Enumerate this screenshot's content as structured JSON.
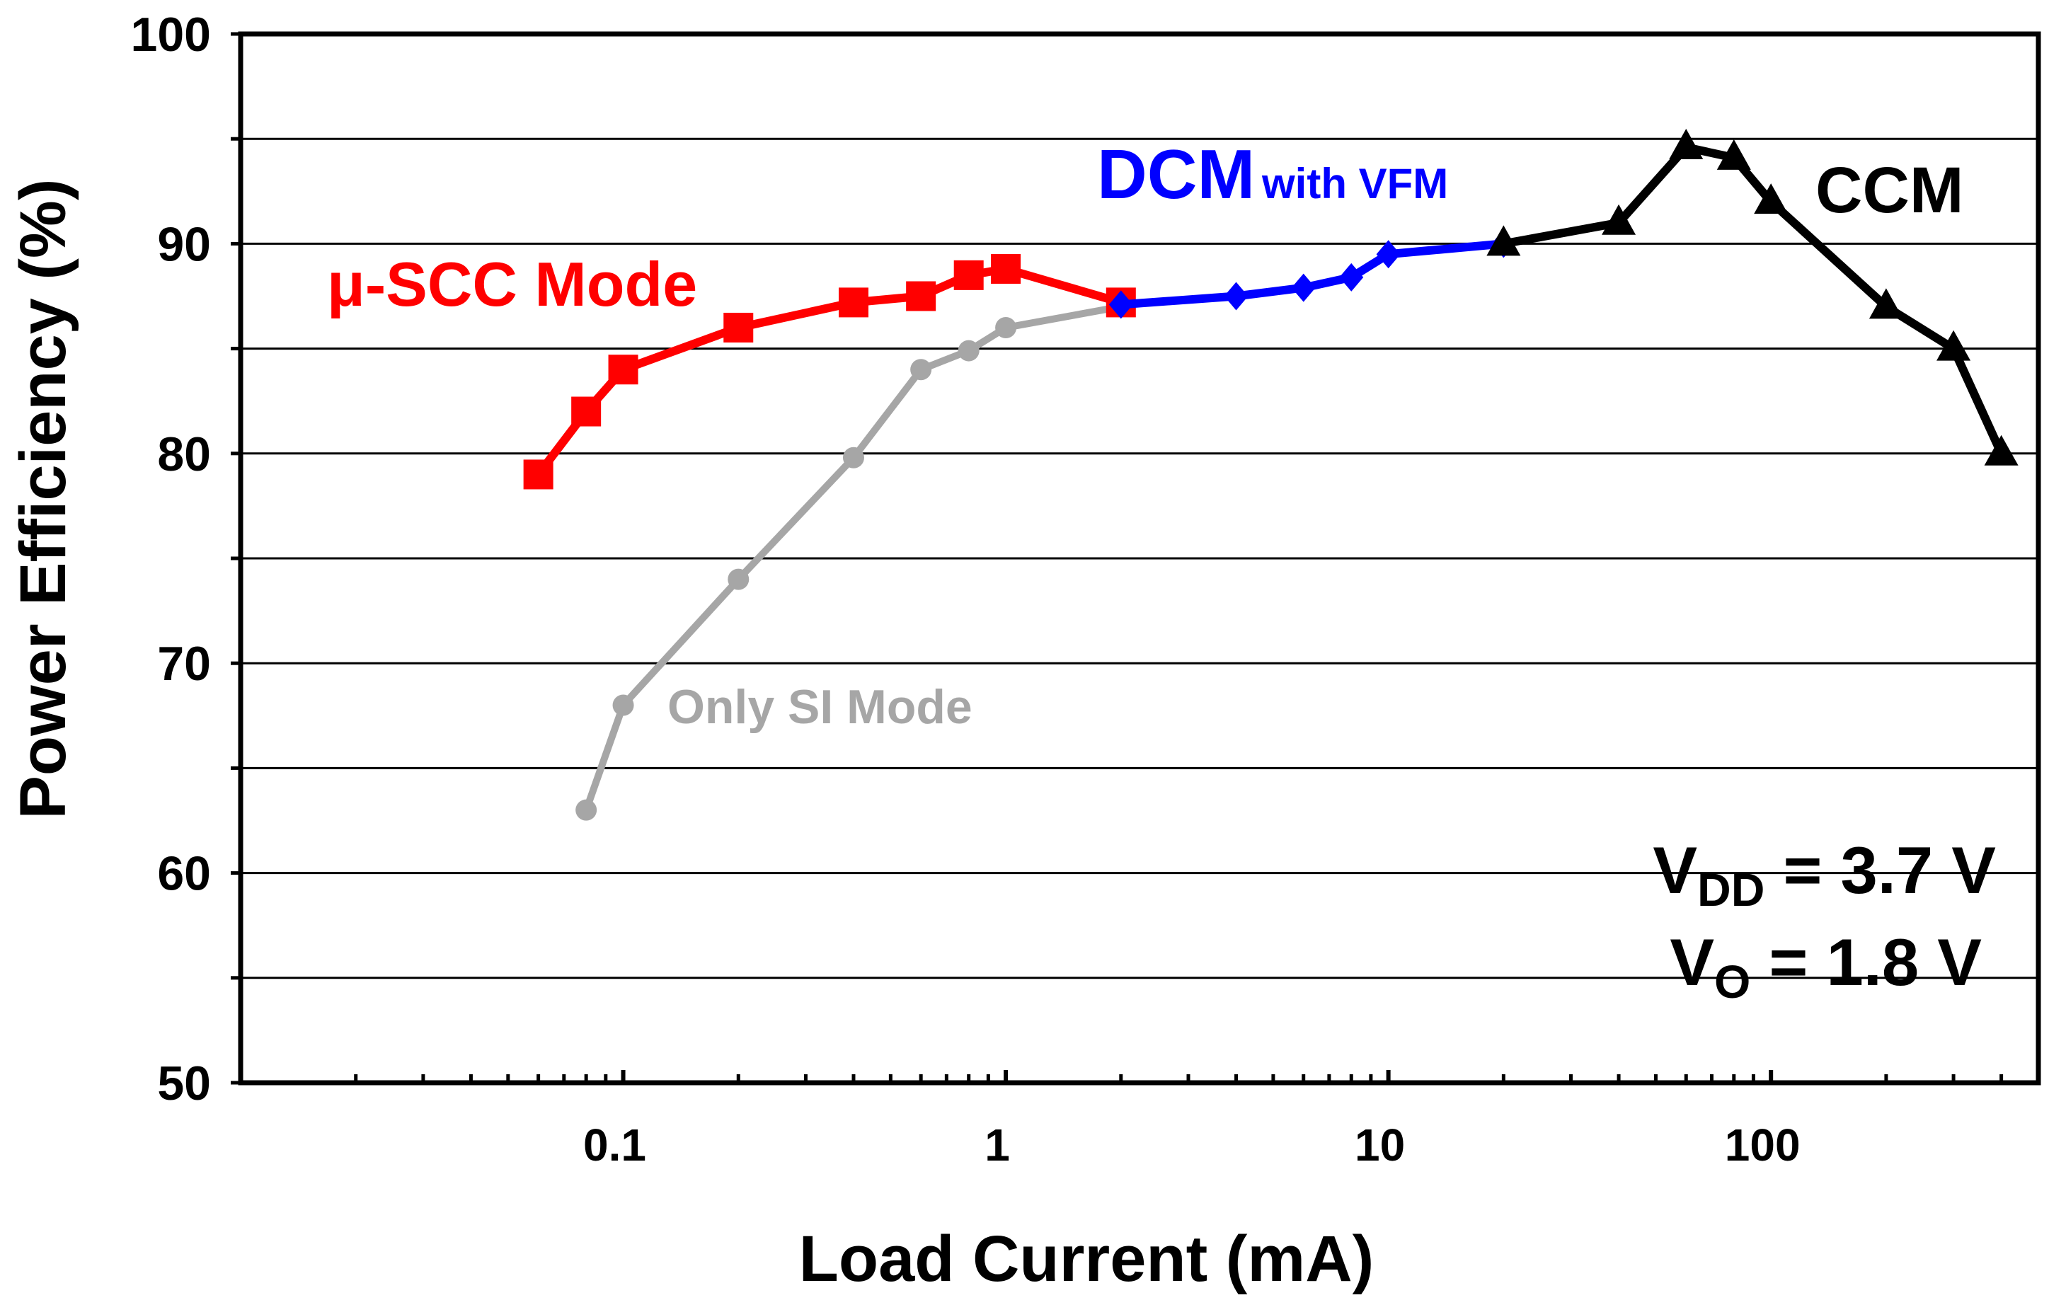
{
  "chart_data": {
    "type": "line",
    "xscale": "log",
    "xlim": [
      0.01,
      500
    ],
    "ylim": [
      50,
      100
    ],
    "xlabel": "Load Current (mA)",
    "ylabel": "Power Efficiency (%)",
    "xticks": [
      {
        "value": 0.1,
        "label": "0.1"
      },
      {
        "value": 1,
        "label": "1"
      },
      {
        "value": 10,
        "label": "10"
      },
      {
        "value": 100,
        "label": "100"
      }
    ],
    "yticks": [
      {
        "value": 50,
        "label": "50"
      },
      {
        "value": 60,
        "label": "60"
      },
      {
        "value": 70,
        "label": "70"
      },
      {
        "value": 80,
        "label": "80"
      },
      {
        "value": 90,
        "label": "90"
      },
      {
        "value": 100,
        "label": "100"
      }
    ],
    "gridlines_y": [
      55,
      60,
      65,
      70,
      75,
      80,
      85,
      90,
      95
    ],
    "series": [
      {
        "name": "Only SI Mode",
        "color": "#a6a6a6",
        "marker": "circle",
        "x": [
          0.08,
          0.1,
          0.2,
          0.4,
          0.6,
          0.8,
          1,
          2
        ],
        "y": [
          63,
          68,
          74,
          79.8,
          84,
          84.9,
          86,
          87
        ]
      },
      {
        "name": "μ-SCC Mode",
        "color": "#ff0000",
        "marker": "square",
        "x": [
          0.06,
          0.08,
          0.1,
          0.2,
          0.4,
          0.6,
          0.8,
          1,
          2
        ],
        "y": [
          79,
          82,
          84,
          86,
          87.2,
          87.5,
          88.5,
          88.8,
          87.2
        ]
      },
      {
        "name": "DCM with VFM",
        "color": "#0000ff",
        "marker": "diamond",
        "x": [
          2,
          4,
          6,
          8,
          10,
          20
        ],
        "y": [
          87.1,
          87.5,
          87.9,
          88.4,
          89.5,
          90
        ]
      },
      {
        "name": "CCM",
        "color": "#000000",
        "marker": "triangle",
        "x": [
          20,
          40,
          60,
          80,
          100,
          200,
          300,
          400
        ],
        "y": [
          90,
          91,
          94.6,
          94.1,
          92,
          87,
          85,
          80
        ]
      }
    ],
    "annotations": {
      "scc": {
        "text": "μ-SCC Mode",
        "color": "#ff0000"
      },
      "dcm_main": {
        "text": "DCM",
        "color": "#0000ff"
      },
      "dcm_sub": {
        "text": "with VFM",
        "color": "#0000ff"
      },
      "ccm": {
        "text": "CCM",
        "color": "#000000"
      },
      "si": {
        "text": "Only SI Mode",
        "color": "#a6a6a6"
      },
      "vdd": {
        "main": "V",
        "sub": "DD",
        "rest": " = 3.7 V"
      },
      "vo": {
        "main": "V",
        "sub": "O",
        "rest": " = 1.8 V"
      }
    }
  }
}
